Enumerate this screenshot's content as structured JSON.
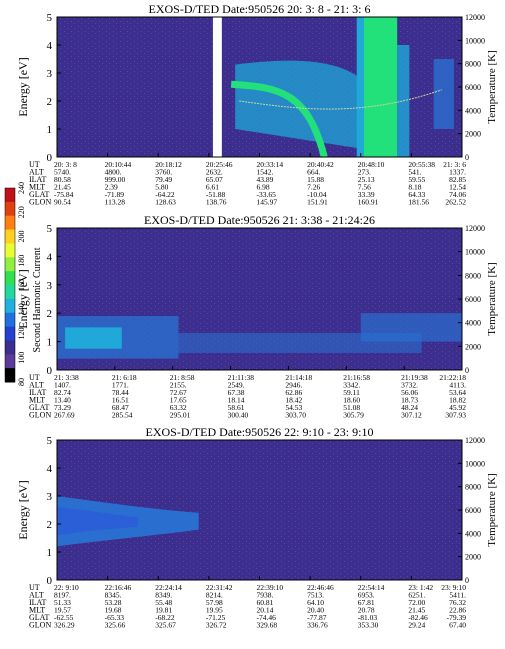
{
  "colors": {
    "background": "#3a2e8f",
    "speckle": "#7a3a8a",
    "band_high": "#22e07a",
    "band_mid": "#1fa8d8",
    "band_low": "#2a6fcf",
    "curve": "#cfd6a0"
  },
  "colorbar": {
    "label": "Second Harmonic Current",
    "ticks": [
      "240",
      "220",
      "200",
      "180",
      "160",
      "140",
      "120",
      "100",
      "80"
    ],
    "colors": [
      "#c0101a",
      "#e04010",
      "#ff8010",
      "#ffd020",
      "#e8ff30",
      "#90f040",
      "#30e050",
      "#20d8a0",
      "#20b0e0",
      "#2070e0",
      "#2440d0",
      "#3a2e8f",
      "#5a3a9a",
      "#000000"
    ]
  },
  "chart_data": [
    {
      "type": "heatmap",
      "title": "EXOS-D/TED   Date:950526  20: 3: 8 - 21: 3: 6",
      "ylabel": "Energy [eV]",
      "y2label": "Temperature [K]",
      "ylim": [
        0,
        5
      ],
      "y2lim": [
        0,
        12000
      ],
      "yticks": [
        "0",
        "1",
        "2",
        "3",
        "4",
        "5"
      ],
      "y2ticks": [
        "0",
        "2000",
        "4000",
        "6000",
        "8000",
        "10000",
        "12000"
      ],
      "rows": [
        "UT",
        "ALT",
        "ILAT",
        "MLT",
        "GLAT",
        "GLON"
      ],
      "columns": [
        [
          "20: 3: 8",
          "5740.",
          "80.58",
          "21.45",
          "-75.84",
          "90.54"
        ],
        [
          "20:10:44",
          "4800.",
          "999.00",
          "2.39",
          "-71.89",
          "113.28"
        ],
        [
          "20:18:12",
          "3760.",
          "79.49",
          "5.80",
          "-64.22",
          "128.63"
        ],
        [
          "20:25:46",
          "2632.",
          "65.07",
          "6.61",
          "-51.88",
          "138.76"
        ],
        [
          "20:33:14",
          "1542.",
          "43.89",
          "6.98",
          "-33.65",
          "145.97"
        ],
        [
          "20:40:42",
          "664.",
          "15.88",
          "7.26",
          "-10.04",
          "151.91"
        ],
        [
          "20:48:10",
          "273.",
          "25.13",
          "7.56",
          "33.39",
          "160.91"
        ],
        [
          "20:55:38",
          "541.",
          "59.55",
          "8.18",
          "64.33",
          "181.56"
        ],
        [
          "21: 3: 6",
          "1337.",
          "82.85",
          "12.54",
          "74.06",
          "262.52"
        ]
      ]
    },
    {
      "type": "heatmap",
      "title": "EXOS-D/TED   Date:950526  21: 3:38 - 21:24:26",
      "ylabel": "Energy [eV]",
      "y2label": "Temperature [K]",
      "ylim": [
        0,
        5
      ],
      "y2lim": [
        0,
        12000
      ],
      "yticks": [
        "0",
        "1",
        "2",
        "3",
        "4",
        "5"
      ],
      "y2ticks": [
        "0",
        "2000",
        "4000",
        "6000",
        "8000",
        "10000",
        "12000"
      ],
      "rows": [
        "UT",
        "ALT",
        "ILAT",
        "MLT",
        "GLAT",
        "GLON"
      ],
      "columns": [
        [
          "21: 3:38",
          "1407.",
          "82.74",
          "13.40",
          "73.29",
          "267.69"
        ],
        [
          "21: 6:18",
          "1771.",
          "78.44",
          "16.51",
          "68.47",
          "285.54"
        ],
        [
          "21: 8:58",
          "2155.",
          "72.67",
          "17.65",
          "63.32",
          "295.01"
        ],
        [
          "21:11:38",
          "2549.",
          "67.38",
          "18.14",
          "58.61",
          "300.40"
        ],
        [
          "21:14:18",
          "2946.",
          "62.86",
          "18.42",
          "54.53",
          "303.70"
        ],
        [
          "21:16:58",
          "3342.",
          "59.11",
          "18.60",
          "51.08",
          "305.79"
        ],
        [
          "21:19:38",
          "3732.",
          "56.06",
          "18.73",
          "48.24",
          "307.12"
        ],
        [
          "21:22:18",
          "4113.",
          "53.64",
          "18.82",
          "45.92",
          "307.93"
        ]
      ]
    },
    {
      "type": "heatmap",
      "title": "EXOS-D/TED   Date:950526  22: 9:10 - 23: 9:10",
      "ylabel": "Energy [eV]",
      "y2label": "Temperature [K]",
      "ylim": [
        0,
        5
      ],
      "y2lim": [
        0,
        12000
      ],
      "yticks": [
        "0",
        "1",
        "2",
        "3",
        "4",
        "5"
      ],
      "y2ticks": [
        "0",
        "2000",
        "4000",
        "6000",
        "8000",
        "10000",
        "12000"
      ],
      "rows": [
        "UT",
        "ALT",
        "ILAT",
        "MLT",
        "GLAT",
        "GLON"
      ],
      "columns": [
        [
          "22: 9:10",
          "8197.",
          "51.33",
          "19.57",
          "-62.55",
          "326.29"
        ],
        [
          "22:16:46",
          "8345.",
          "53.28",
          "19.68",
          "-65.33",
          "325.66"
        ],
        [
          "22:24:14",
          "8349.",
          "55.48",
          "19.81",
          "-68.22",
          "325.67"
        ],
        [
          "22:31:42",
          "8214.",
          "57.98",
          "19.95",
          "-71.25",
          "326.72"
        ],
        [
          "22:39:10",
          "7938.",
          "60.81",
          "20.14",
          "-74.46",
          "329.68"
        ],
        [
          "22:46:46",
          "7513.",
          "64.10",
          "20.40",
          "-77.87",
          "336.76"
        ],
        [
          "22:54:14",
          "6953.",
          "67.81",
          "20.78",
          "-81.03",
          "353.30"
        ],
        [
          "23: 1:42",
          "6251.",
          "72.00",
          "21.45",
          "-82.46",
          "29.24"
        ],
        [
          "23: 9:10",
          "5411.",
          "76.32",
          "22.86",
          "-79.39",
          "67.40"
        ]
      ]
    }
  ]
}
